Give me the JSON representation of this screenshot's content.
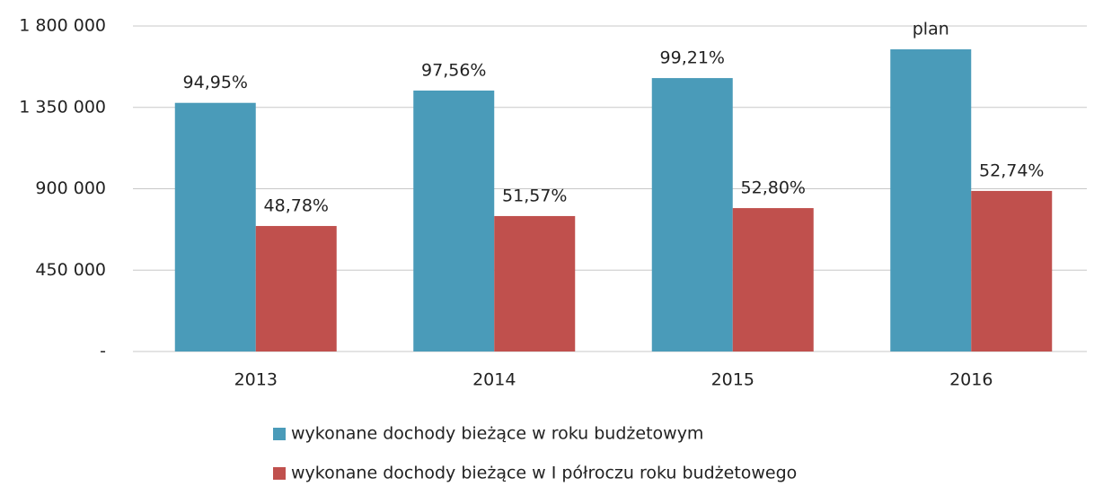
{
  "chart_data": {
    "type": "bar",
    "categories": [
      "2013",
      "2014",
      "2015",
      "2016"
    ],
    "series": [
      {
        "name": "wykonane dochody bieżące w roku budżetowym",
        "color": "#4a9bb9",
        "values": [
          1375000,
          1443000,
          1512000,
          1671000
        ],
        "annotations": [
          "94,95%",
          "97,56%",
          "99,21%",
          "plan"
        ]
      },
      {
        "name": "wykonane dochody bieżące w I półroczu roku budżetowego",
        "color": "#c0504d",
        "values": [
          694000,
          749000,
          793000,
          888000
        ],
        "annotations": [
          "48,78%",
          "51,57%",
          "52,80%",
          "52,74%"
        ]
      }
    ],
    "ylim": [
      0,
      1800000
    ],
    "yticks": [
      {
        "value": 0,
        "label": "-"
      },
      {
        "value": 450000,
        "label": "450 000"
      },
      {
        "value": 900000,
        "label": "900 000"
      },
      {
        "value": 1350000,
        "label": "1 350 000"
      },
      {
        "value": 1800000,
        "label": "1 800 000"
      }
    ],
    "grid": true,
    "legend": "bottom"
  }
}
